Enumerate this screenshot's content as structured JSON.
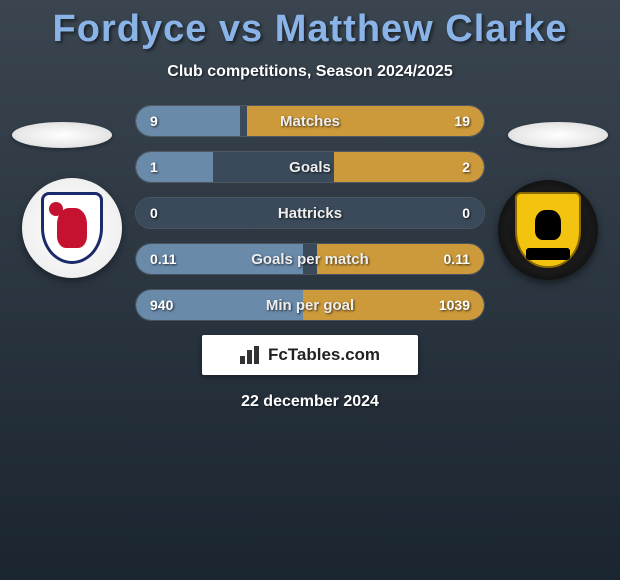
{
  "title": "Fordyce vs Matthew Clarke",
  "subtitle": "Club competitions, Season 2024/2025",
  "date": "22 december 2024",
  "brand": "FcTables.com",
  "colors": {
    "title": "#8ab4e8",
    "bar_left": "#6a8aaa",
    "bar_right": "#cc9a3a",
    "bar_bg": "#3a4a5a",
    "fc_bg": "#ffffff"
  },
  "stats": [
    {
      "label": "Matches",
      "left_val": "9",
      "right_val": "19",
      "left_pct": 30,
      "right_pct": 68
    },
    {
      "label": "Goals",
      "left_val": "1",
      "right_val": "2",
      "left_pct": 22,
      "right_pct": 43
    },
    {
      "label": "Hattricks",
      "left_val": "0",
      "right_val": "0",
      "left_pct": 0,
      "right_pct": 0
    },
    {
      "label": "Goals per match",
      "left_val": "0.11",
      "right_val": "0.11",
      "left_pct": 48,
      "right_pct": 48
    },
    {
      "label": "Min per goal",
      "left_val": "940",
      "right_val": "1039",
      "left_pct": 48,
      "right_pct": 52
    }
  ]
}
